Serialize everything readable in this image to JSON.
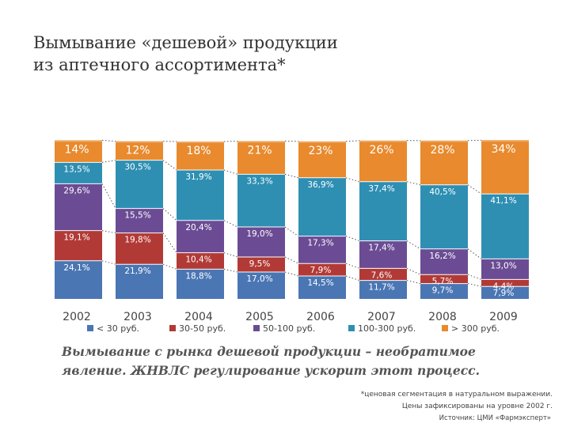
{
  "header": {
    "title_line1": "Вымывание «дешевой» продукции",
    "title_line2": "из аптечного ассортимента*"
  },
  "chart_data": {
    "type": "bar",
    "stacked": true,
    "percent": true,
    "categories": [
      "2002",
      "2003",
      "2004",
      "2005",
      "2006",
      "2007",
      "2008",
      "2009"
    ],
    "series": [
      {
        "name": "< 30 руб.",
        "color": "#4a76b4",
        "values": [
          24.1,
          21.9,
          18.8,
          17.0,
          14.5,
          11.7,
          9.7,
          7.9
        ],
        "labels": [
          "24,1%",
          "21,9%",
          "18,8%",
          "17,0%",
          "14,5%",
          "11,7%",
          "9,7%",
          "7,9%"
        ]
      },
      {
        "name": "30-50 руб.",
        "color": "#b23a36",
        "values": [
          19.1,
          19.8,
          10.4,
          9.5,
          7.9,
          7.6,
          5.7,
          4.4
        ],
        "labels": [
          "19,1%",
          "19,8%",
          "10,4%",
          "9,5%",
          "7,9%",
          "7,6%",
          "5,7%",
          "4,4%"
        ]
      },
      {
        "name": "50-100 руб.",
        "color": "#6b4c94",
        "values": [
          29.6,
          15.5,
          20.4,
          19.0,
          17.3,
          17.4,
          16.2,
          13.0
        ],
        "labels": [
          "29,6%",
          "15,5%",
          "20,4%",
          "19,0%",
          "17,3%",
          "17,4%",
          "16,2%",
          "13,0%"
        ]
      },
      {
        "name": "100-300 руб.",
        "color": "#2e8fb3",
        "values": [
          13.5,
          30.5,
          31.9,
          33.3,
          36.9,
          37.4,
          40.5,
          41.1
        ],
        "labels": [
          "13,5%",
          "30,5%",
          "31,9%",
          "33,3%",
          "36,9%",
          "37,4%",
          "40,5%",
          "41,1%"
        ]
      },
      {
        "name": "> 300 руб.",
        "color": "#e88a2d",
        "values": [
          14,
          12,
          18,
          21,
          23,
          26,
          28,
          34
        ],
        "labels": [
          "14%",
          "12%",
          "18%",
          "21%",
          "23%",
          "26%",
          "28%",
          "34%"
        ]
      }
    ],
    "legend_position": "bottom",
    "ylim": [
      0,
      100
    ]
  },
  "conclusion": {
    "line1": "Вымывание с рынка дешевой продукции – необратимое",
    "line2": "явление. ЖНВЛС регулирование ускорит этот процесс."
  },
  "footnote": {
    "line1": "*ценовая сегментация в натуральном выражении.",
    "line2": "Цены зафиксированы на уровне 2002 г."
  },
  "source": "Источник: ЦМИ «Фармэксперт»"
}
